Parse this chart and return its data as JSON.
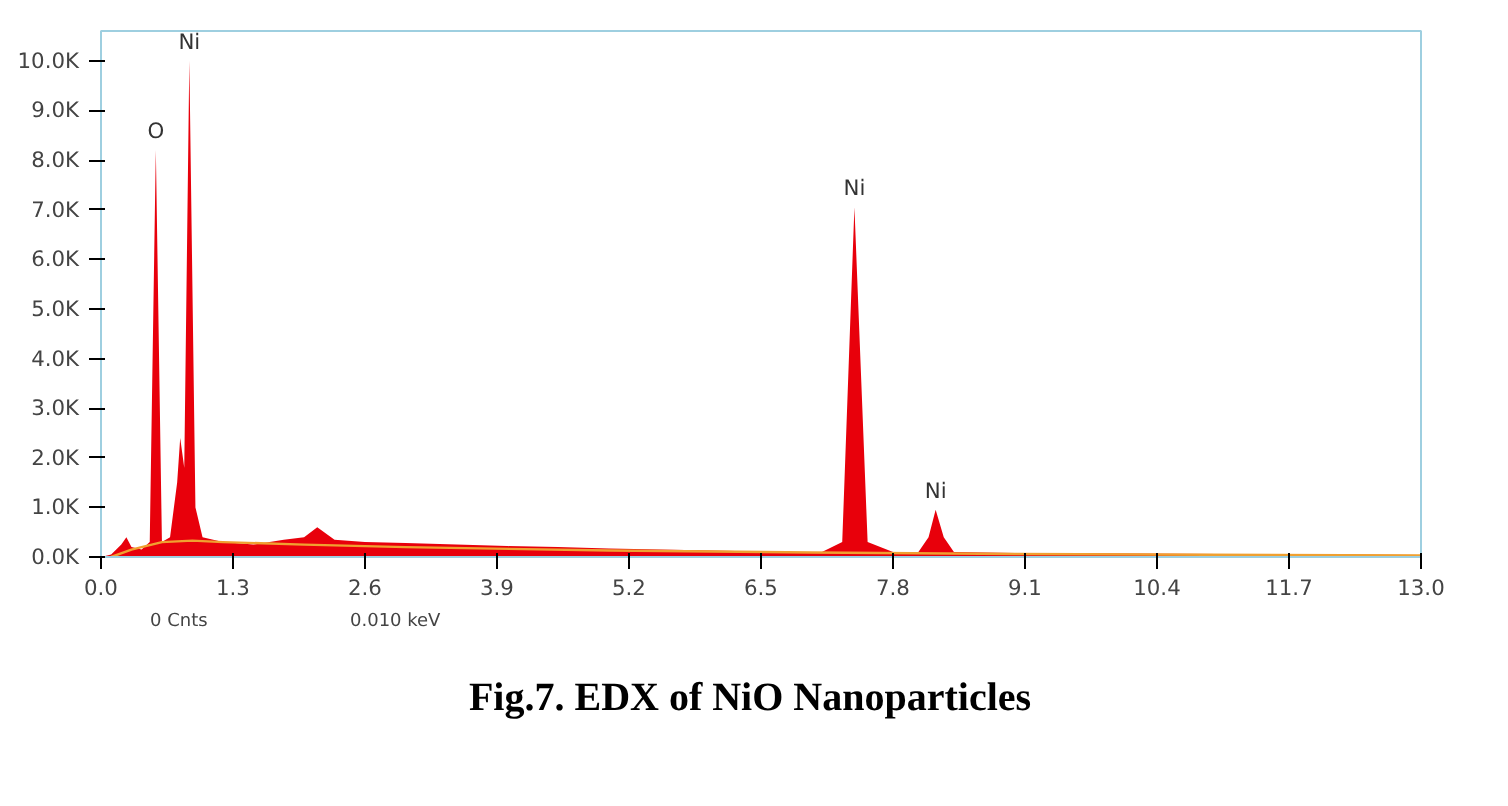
{
  "chart_data": {
    "type": "area",
    "title": "Fig.7. EDX of NiO Nanoparticles",
    "xlim": [
      0,
      13
    ],
    "ylim": [
      0,
      10600
    ],
    "xticks": [
      {
        "value": 0,
        "label": "0.0"
      },
      {
        "value": 1.3,
        "label": "1.3"
      },
      {
        "value": 2.6,
        "label": "2.6"
      },
      {
        "value": 3.9,
        "label": "3.9"
      },
      {
        "value": 5.2,
        "label": "5.2"
      },
      {
        "value": 6.5,
        "label": "6.5"
      },
      {
        "value": 7.8,
        "label": "7.8"
      },
      {
        "value": 9.1,
        "label": "9.1"
      },
      {
        "value": 10.4,
        "label": "10.4"
      },
      {
        "value": 11.7,
        "label": "11.7"
      },
      {
        "value": 13,
        "label": "13.0"
      }
    ],
    "yticks": [
      {
        "value": 0,
        "label": "0.0K"
      },
      {
        "value": 1000,
        "label": "1.0K"
      },
      {
        "value": 2000,
        "label": "2.0K"
      },
      {
        "value": 3000,
        "label": "3.0K"
      },
      {
        "value": 4000,
        "label": "4.0K"
      },
      {
        "value": 5000,
        "label": "5.0K"
      },
      {
        "value": 6000,
        "label": "6.0K"
      },
      {
        "value": 7000,
        "label": "7.0K"
      },
      {
        "value": 8000,
        "label": "8.0K"
      },
      {
        "value": 9000,
        "label": "9.0K"
      },
      {
        "value": 10000,
        "label": "10.0K"
      }
    ],
    "grid": false,
    "series": [
      {
        "color": "#e8000b",
        "x": [
          0.0,
          0.1,
          0.2,
          0.25,
          0.3,
          0.4,
          0.48,
          0.54,
          0.6,
          0.68,
          0.75,
          0.78,
          0.82,
          0.87,
          0.93,
          1.0,
          1.2,
          1.5,
          1.8,
          2.0,
          2.13,
          2.3,
          2.6,
          3.0,
          3.5,
          4.0,
          4.5,
          5.0,
          5.5,
          6.0,
          6.5,
          6.8,
          7.1,
          7.3,
          7.42,
          7.55,
          7.8,
          8.05,
          8.15,
          8.22,
          8.3,
          8.4,
          9.0,
          10.0,
          11.0,
          12.0,
          13.0
        ],
        "values": [
          0,
          50,
          250,
          400,
          200,
          150,
          300,
          8200,
          300,
          400,
          1500,
          2400,
          1800,
          10000,
          1000,
          400,
          300,
          250,
          350,
          400,
          600,
          350,
          300,
          280,
          250,
          220,
          200,
          170,
          150,
          130,
          110,
          100,
          100,
          300,
          7050,
          300,
          100,
          100,
          400,
          950,
          400,
          100,
          80,
          70,
          60,
          50,
          40
        ]
      },
      {
        "type": "line",
        "color": "#f0a030",
        "x": [
          0.1,
          0.3,
          0.6,
          0.9,
          1.2,
          2.0,
          3.0,
          5.0,
          7.0,
          9.0,
          13.0
        ],
        "values": [
          0,
          150,
          300,
          330,
          300,
          250,
          200,
          130,
          90,
          60,
          30
        ]
      }
    ],
    "annotations": [
      {
        "text": "O",
        "x": 0.54,
        "y": 8200
      },
      {
        "text": "Ni",
        "x": 0.87,
        "y": 10000
      },
      {
        "text": "Ni",
        "x": 7.42,
        "y": 7050
      },
      {
        "text": "Ni",
        "x": 8.22,
        "y": 950
      },
      "0 Cnts",
      "0.010 keV"
    ]
  }
}
